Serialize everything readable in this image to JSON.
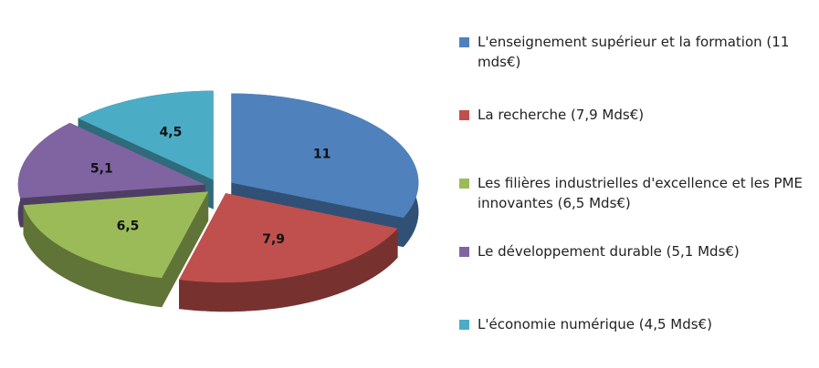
{
  "chart_data": {
    "type": "pie",
    "categories": [
      "L'enseignement supérieur et la formation (11 mds€)",
      "La recherche (7,9 Mds€)",
      "Les filières industrielles d'excellence et les PME innovantes (6,5 Mds€)",
      "Le développement durable (5,1 Mds€)",
      "L'économie numérique (4,5 Mds€)"
    ],
    "values": [
      11,
      7.9,
      6.5,
      5.1,
      4.5
    ],
    "value_labels": [
      "11",
      "7,9",
      "6,5",
      "5,1",
      "4,5"
    ],
    "colors": [
      "#4f81bd",
      "#c0504d",
      "#9bbb59",
      "#8064a2",
      "#4bacc6"
    ],
    "legend": "right"
  }
}
